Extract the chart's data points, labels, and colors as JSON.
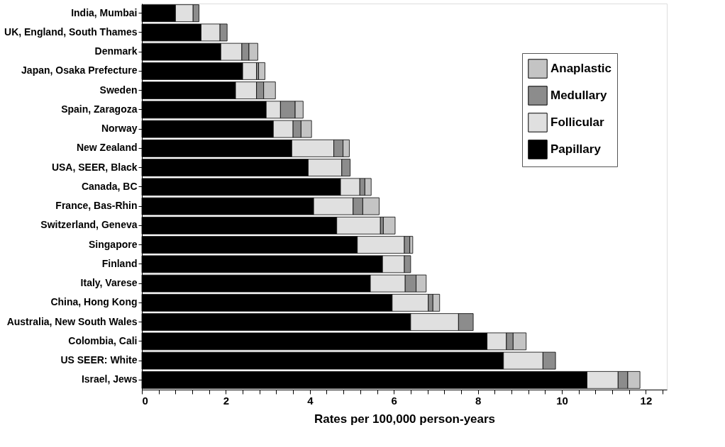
{
  "chart_data": {
    "type": "bar",
    "orientation": "horizontal",
    "stacked": true,
    "xlabel": "Rates per 100,000 person-years",
    "categories": [
      "India, Mumbai",
      "UK, England, South Thames",
      "Denmark",
      "Japan, Osaka Prefecture",
      "Sweden",
      "Spain, Zaragoza",
      "Norway",
      "New Zealand",
      "USA, SEER, Black",
      "Canada, BC",
      "France, Bas-Rhin",
      "Switzerland, Geneva",
      "Singapore",
      "Finland",
      "Italy, Varese",
      "China, Hong Kong",
      "Australia, New South Wales",
      "Colombia, Cali",
      "US SEER: White",
      "Israel, Jews"
    ],
    "series": [
      {
        "name": "Papillary",
        "color": "#000000",
        "values": [
          0.8,
          1.41,
          1.88,
          2.4,
          2.23,
          2.96,
          3.13,
          3.57,
          3.96,
          4.73,
          4.09,
          4.64,
          5.13,
          5.73,
          5.44,
          5.96,
          6.4,
          8.22,
          8.61,
          10.6
        ]
      },
      {
        "name": "Follicular",
        "color": "#e0e0e0",
        "values": [
          0.42,
          0.45,
          0.5,
          0.33,
          0.5,
          0.34,
          0.47,
          1.0,
          0.8,
          0.46,
          0.94,
          1.04,
          1.12,
          0.52,
          0.83,
          0.86,
          1.14,
          0.46,
          0.94,
          0.74
        ]
      },
      {
        "name": "Medullary",
        "color": "#8c8c8c",
        "values": [
          0.14,
          0.17,
          0.17,
          0.05,
          0.17,
          0.35,
          0.19,
          0.22,
          0.2,
          0.12,
          0.23,
          0.07,
          0.13,
          0.15,
          0.26,
          0.11,
          0.35,
          0.16,
          0.3,
          0.23
        ]
      },
      {
        "name": "Anaplastic",
        "color": "#c4c4c4",
        "values": [
          0,
          0,
          0.21,
          0.15,
          0.28,
          0.19,
          0.25,
          0.15,
          0,
          0.15,
          0.39,
          0.28,
          0.07,
          0,
          0.24,
          0.16,
          0,
          0.31,
          0,
          0.29
        ]
      }
    ],
    "xlim": [
      0,
      12.5
    ],
    "xticks": [
      0,
      {
        "value": 0.4,
        "label": null
      },
      {
        "value": 0.8,
        "label": null
      },
      {
        "value": 1.2,
        "label": null
      },
      {
        "value": 1.6,
        "label": null
      },
      2,
      {
        "value": 2.4,
        "label": null
      },
      {
        "value": 2.8,
        "label": null
      },
      {
        "value": 3.2,
        "label": null
      },
      {
        "value": 3.6,
        "label": null
      },
      4,
      {
        "value": 4.4,
        "label": null
      },
      {
        "value": 4.8,
        "label": null
      },
      {
        "value": 5.2,
        "label": null
      },
      {
        "value": 5.6,
        "label": null
      },
      6,
      {
        "value": 6.4,
        "label": null
      },
      {
        "value": 6.8,
        "label": null
      },
      {
        "value": 7.2,
        "label": null
      },
      {
        "value": 7.6,
        "label": null
      },
      8,
      {
        "value": 8.4,
        "label": null
      },
      {
        "value": 8.8,
        "label": null
      },
      {
        "value": 9.2,
        "label": null
      },
      {
        "value": 9.6,
        "label": null
      },
      10,
      {
        "value": 10.4,
        "label": null
      },
      {
        "value": 10.8,
        "label": null
      },
      {
        "value": 11.2,
        "label": null
      },
      {
        "value": 11.6,
        "label": null
      },
      12,
      {
        "value": 12.4,
        "label": null
      }
    ],
    "legend": "top right",
    "grid": false
  }
}
